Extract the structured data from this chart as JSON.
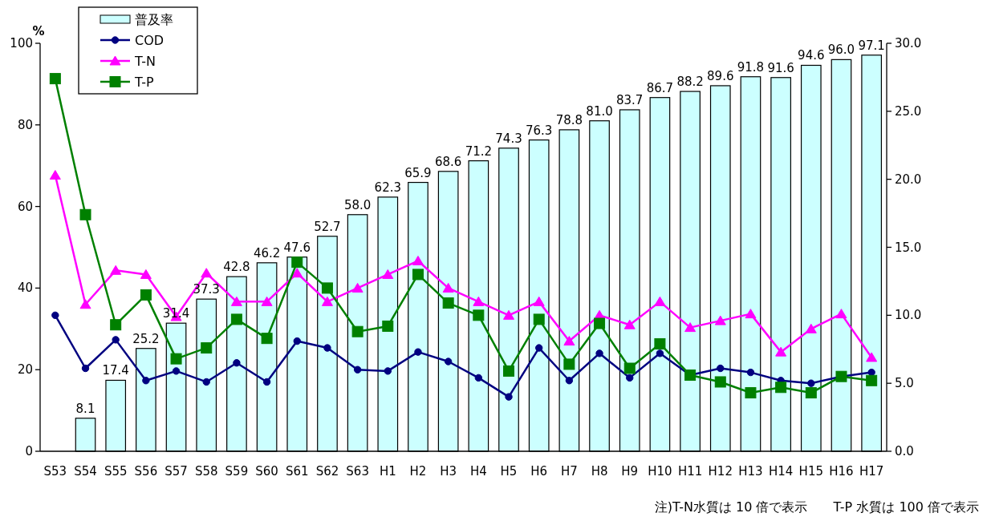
{
  "chart_data": {
    "type": "bar",
    "ylabel": "%",
    "categories": [
      "S53",
      "S54",
      "S55",
      "S56",
      "S57",
      "S58",
      "S59",
      "S60",
      "S61",
      "S62",
      "S63",
      "H1",
      "H2",
      "H3",
      "H4",
      "H5",
      "H6",
      "H7",
      "H8",
      "H9",
      "H10",
      "H11",
      "H12",
      "H13",
      "H14",
      "H15",
      "H16",
      "H17"
    ],
    "series": [
      {
        "name": "普及率",
        "color": "#ccffff",
        "values": [
          null,
          8.1,
          17.4,
          25.2,
          31.4,
          37.3,
          42.8,
          46.2,
          47.6,
          52.7,
          58.0,
          62.3,
          65.9,
          68.6,
          71.2,
          74.3,
          76.3,
          78.8,
          81.0,
          83.7,
          86.7,
          88.2,
          89.6,
          91.8,
          91.6,
          94.6,
          96.0,
          97.1
        ],
        "value_labels": [
          null,
          "8.1",
          "17.4",
          "25.2",
          "31.4",
          "37.3",
          "42.8",
          "46.2",
          "47.6",
          "52.7",
          "58.0",
          "62.3",
          "65.9",
          "68.6",
          "71.2",
          "74.3",
          "76.3",
          "78.8",
          "81.0",
          "83.7",
          "86.7",
          "88.2",
          "89.6",
          "91.8",
          "91.6",
          "94.6",
          "96.0",
          "97.1"
        ]
      },
      {
        "name": "COD",
        "type": "line",
        "axis": "y2",
        "color": "#000080",
        "marker": "circle",
        "values": [
          10.0,
          6.1,
          8.2,
          5.2,
          5.9,
          5.1,
          6.5,
          5.1,
          8.1,
          7.6,
          6.0,
          5.9,
          7.3,
          6.6,
          5.4,
          4.0,
          7.6,
          5.2,
          7.2,
          5.4,
          7.2,
          5.6,
          6.1,
          5.8,
          5.2,
          5.0,
          5.5,
          5.8
        ]
      },
      {
        "name": "T-N",
        "type": "line",
        "axis": "y2",
        "color": "#ff00ff",
        "marker": "triangle",
        "values": [
          20.3,
          10.8,
          13.3,
          13.0,
          9.9,
          13.1,
          11.0,
          11.0,
          13.1,
          11.0,
          12.0,
          13.0,
          14.0,
          12.0,
          11.0,
          10.0,
          11.0,
          8.1,
          10.0,
          9.3,
          11.0,
          9.1,
          9.6,
          10.1,
          7.3,
          9.0,
          10.1,
          6.9
        ]
      },
      {
        "name": "T-P",
        "type": "line",
        "axis": "y2",
        "color": "#008000",
        "marker": "square",
        "values": [
          27.4,
          17.4,
          9.3,
          11.5,
          6.8,
          7.6,
          9.7,
          8.3,
          13.9,
          12.0,
          8.8,
          9.2,
          13.0,
          10.9,
          10.0,
          5.9,
          9.7,
          6.4,
          9.4,
          6.1,
          7.9,
          5.6,
          5.1,
          4.3,
          4.7,
          4.3,
          5.5,
          5.2
        ]
      }
    ],
    "ylim": [
      0,
      100
    ],
    "yticks": [
      0,
      20,
      40,
      60,
      80,
      100
    ],
    "y2lim": [
      0,
      30
    ],
    "y2ticks": [
      {
        "value": 0,
        "label": "0.0"
      },
      {
        "value": 5,
        "label": "5.0"
      },
      {
        "value": 10,
        "label": "10.0"
      },
      {
        "value": 15,
        "label": "15.0"
      },
      {
        "value": 20,
        "label": "20.0"
      },
      {
        "value": 25,
        "label": "25.0"
      },
      {
        "value": 30,
        "label": "30.0"
      }
    ],
    "legend": "top left",
    "annotations": [
      "注)T-N水質は 10 倍で表示　　T-P 水質は 100 倍で表示"
    ]
  }
}
